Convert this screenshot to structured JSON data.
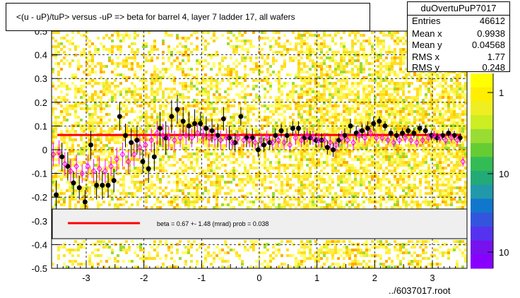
{
  "title": "<(u - uP)/tuP> versus  -uP => beta for barrel 4, layer 7 ladder 17, all wafers",
  "stats": {
    "name": "duOvertuPuP7017",
    "rows": [
      {
        "label": "Entries",
        "value": "46612"
      },
      {
        "label": "Mean x",
        "value": "0.9938"
      },
      {
        "label": "Mean y",
        "value": "0.04568"
      },
      {
        "label": "RMS x",
        "value": "1.77"
      },
      {
        "label": "RMS y",
        "value": "0.248"
      }
    ]
  },
  "legend": {
    "text": "beta =     0.67 +-  1.48 (mrad) prob = 0.038"
  },
  "footer": "../6037017.root",
  "colors": {
    "fit": "#ff0000",
    "profile_filled": "#000000",
    "profile_open": "#ff00ff",
    "heat_low": "#ffff00",
    "heat_high": "#00cc33"
  },
  "chart_data": {
    "type": "scatter",
    "xlim": [
      -3.6,
      3.6
    ],
    "ylim": [
      -0.5,
      0.5
    ],
    "x_ticks": [
      "-3",
      "-2",
      "-1",
      "0",
      "1",
      "2",
      "3"
    ],
    "x_tick_values": [
      -3,
      -2,
      -1,
      0,
      1,
      2,
      3
    ],
    "y_ticks": [
      "-0.5",
      "-0.4",
      "-0.3",
      "-0.2",
      "-0.1",
      "0",
      "0.1",
      "0.2",
      "0.3",
      "0.4",
      "0.5"
    ],
    "y_tick_values": [
      -0.5,
      -0.4,
      -0.3,
      -0.2,
      -0.1,
      0,
      0.1,
      0.2,
      0.3,
      0.4,
      0.5
    ],
    "colorbar_ticks": [
      "1",
      "10",
      "10"
    ],
    "grid": true,
    "fit_line": {
      "y": 0.062
    },
    "series": [
      {
        "marker": "filled-circle",
        "x": [
          -3.52,
          -3.42,
          -3.32,
          -3.22,
          -3.12,
          -3.02,
          -2.92,
          -2.82,
          -2.72,
          -2.62,
          -2.52,
          -2.42,
          -2.32,
          -2.22,
          -2.12,
          -2.02,
          -1.92,
          -1.82,
          -1.72,
          -1.62,
          -1.52,
          -1.42,
          -1.32,
          -1.22,
          -1.12,
          -1.02,
          -0.92,
          -0.82,
          -0.72,
          -0.62,
          -0.52,
          -0.42,
          -0.32,
          -0.22,
          -0.12,
          -0.02,
          0.08,
          0.18,
          0.28,
          0.38,
          0.48,
          0.58,
          0.68,
          0.78,
          0.88,
          0.98,
          1.08,
          1.18,
          1.28,
          1.38,
          1.48,
          1.58,
          1.68,
          1.78,
          1.88,
          1.98,
          2.08,
          2.18,
          2.28,
          2.38,
          2.48,
          2.58,
          2.68,
          2.78,
          2.88,
          2.98,
          3.08,
          3.18,
          3.28,
          3.38,
          3.48
        ],
        "y": [
          -0.19,
          -0.03,
          -0.07,
          -0.14,
          -0.16,
          -0.22,
          0.02,
          -0.15,
          -0.15,
          -0.15,
          -0.13,
          0.14,
          0.06,
          0.03,
          0.04,
          -0.05,
          -0.08,
          -0.03,
          0.09,
          0.05,
          0.14,
          0.17,
          0.12,
          0.1,
          0.11,
          0.11,
          0.09,
          0.08,
          0.06,
          0.13,
          0.05,
          0.03,
          0.14,
          0.05,
          0.05,
          0.0,
          0.02,
          0.03,
          0.06,
          0.08,
          0.06,
          0.09,
          0.09,
          0.05,
          0.05,
          0.04,
          0.04,
          0.01,
          0.0,
          0.04,
          0.06,
          0.1,
          0.07,
          0.08,
          0.09,
          0.11,
          0.12,
          0.1,
          0.07,
          0.06,
          0.07,
          0.08,
          0.07,
          0.09,
          0.08,
          0.06,
          0.05,
          0.06,
          0.07,
          0.06,
          0.05
        ],
        "errors": [
          0.06,
          0.06,
          0.06,
          0.05,
          0.05,
          0.05,
          0.06,
          0.06,
          0.06,
          0.05,
          0.05,
          0.06,
          0.05,
          0.06,
          0.06,
          0.05,
          0.06,
          0.06,
          0.07,
          0.07,
          0.07,
          0.06,
          0.06,
          0.06,
          0.06,
          0.05,
          0.05,
          0.05,
          0.05,
          0.05,
          0.05,
          0.04,
          0.04,
          0.04,
          0.04,
          0.03,
          0.03,
          0.03,
          0.03,
          0.03,
          0.03,
          0.03,
          0.03,
          0.03,
          0.03,
          0.03,
          0.03,
          0.03,
          0.03,
          0.03,
          0.03,
          0.03,
          0.03,
          0.03,
          0.03,
          0.03,
          0.02,
          0.02,
          0.02,
          0.02,
          0.02,
          0.02,
          0.02,
          0.02,
          0.02,
          0.02,
          0.02,
          0.02,
          0.02,
          0.02,
          0.02
        ]
      },
      {
        "marker": "open-diamond",
        "x": [
          -3.57,
          -3.47,
          -3.37,
          -3.27,
          -3.17,
          -3.07,
          -2.97,
          -2.87,
          -2.77,
          -2.67,
          -2.57,
          -2.47,
          -2.37,
          -2.27,
          -2.17,
          -2.07,
          -1.97,
          -1.87,
          -1.77,
          -1.67,
          -1.57,
          -1.47,
          -1.37,
          -1.27,
          -1.17,
          -1.07,
          -0.97,
          -0.87,
          -0.77,
          -0.67,
          -0.57,
          -0.47,
          -0.37,
          -0.27,
          -0.17,
          -0.07,
          0.03,
          0.13,
          0.23,
          0.33,
          0.43,
          0.53,
          0.63,
          0.73,
          0.83,
          0.93,
          1.03,
          1.13,
          1.23,
          1.33,
          1.43,
          1.53,
          1.63,
          1.73,
          1.83,
          1.93,
          2.03,
          2.13,
          2.23,
          2.33,
          2.43,
          2.53,
          2.63,
          2.73,
          2.83,
          2.93,
          3.03,
          3.13,
          3.23,
          3.33,
          3.43,
          3.53
        ],
        "y": [
          -0.02,
          -0.01,
          -0.06,
          -0.09,
          -0.07,
          -0.1,
          -0.07,
          -0.09,
          -0.08,
          -0.09,
          -0.07,
          -0.04,
          -0.02,
          -0.05,
          -0.02,
          0.01,
          0.02,
          0.04,
          0.07,
          0.06,
          0.05,
          0.04,
          0.05,
          0.06,
          0.05,
          0.07,
          0.06,
          0.05,
          0.05,
          0.04,
          0.05,
          0.03,
          0.05,
          0.04,
          0.04,
          0.03,
          0.04,
          0.05,
          0.03,
          0.04,
          0.03,
          0.02,
          0.05,
          0.04,
          0.06,
          0.05,
          0.04,
          0.04,
          0.03,
          0.02,
          0.05,
          0.04,
          0.03,
          0.06,
          0.05,
          0.07,
          0.05,
          0.05,
          0.04,
          0.03,
          0.04,
          0.05,
          0.04,
          0.03,
          0.04,
          0.05,
          0.06,
          0.05,
          0.04,
          0.05,
          0.04,
          -0.05
        ],
        "errors": [
          0.05,
          0.05,
          0.05,
          0.05,
          0.05,
          0.04,
          0.05,
          0.05,
          0.05,
          0.05,
          0.04,
          0.05,
          0.05,
          0.05,
          0.05,
          0.05,
          0.05,
          0.05,
          0.05,
          0.05,
          0.05,
          0.04,
          0.04,
          0.04,
          0.04,
          0.04,
          0.04,
          0.04,
          0.04,
          0.04,
          0.04,
          0.03,
          0.03,
          0.03,
          0.03,
          0.03,
          0.03,
          0.03,
          0.03,
          0.03,
          0.03,
          0.03,
          0.03,
          0.03,
          0.03,
          0.03,
          0.03,
          0.03,
          0.03,
          0.03,
          0.03,
          0.03,
          0.03,
          0.03,
          0.03,
          0.02,
          0.02,
          0.02,
          0.02,
          0.02,
          0.02,
          0.02,
          0.02,
          0.02,
          0.02,
          0.02,
          0.02,
          0.02,
          0.02,
          0.02,
          0.02,
          0.02
        ]
      }
    ]
  }
}
